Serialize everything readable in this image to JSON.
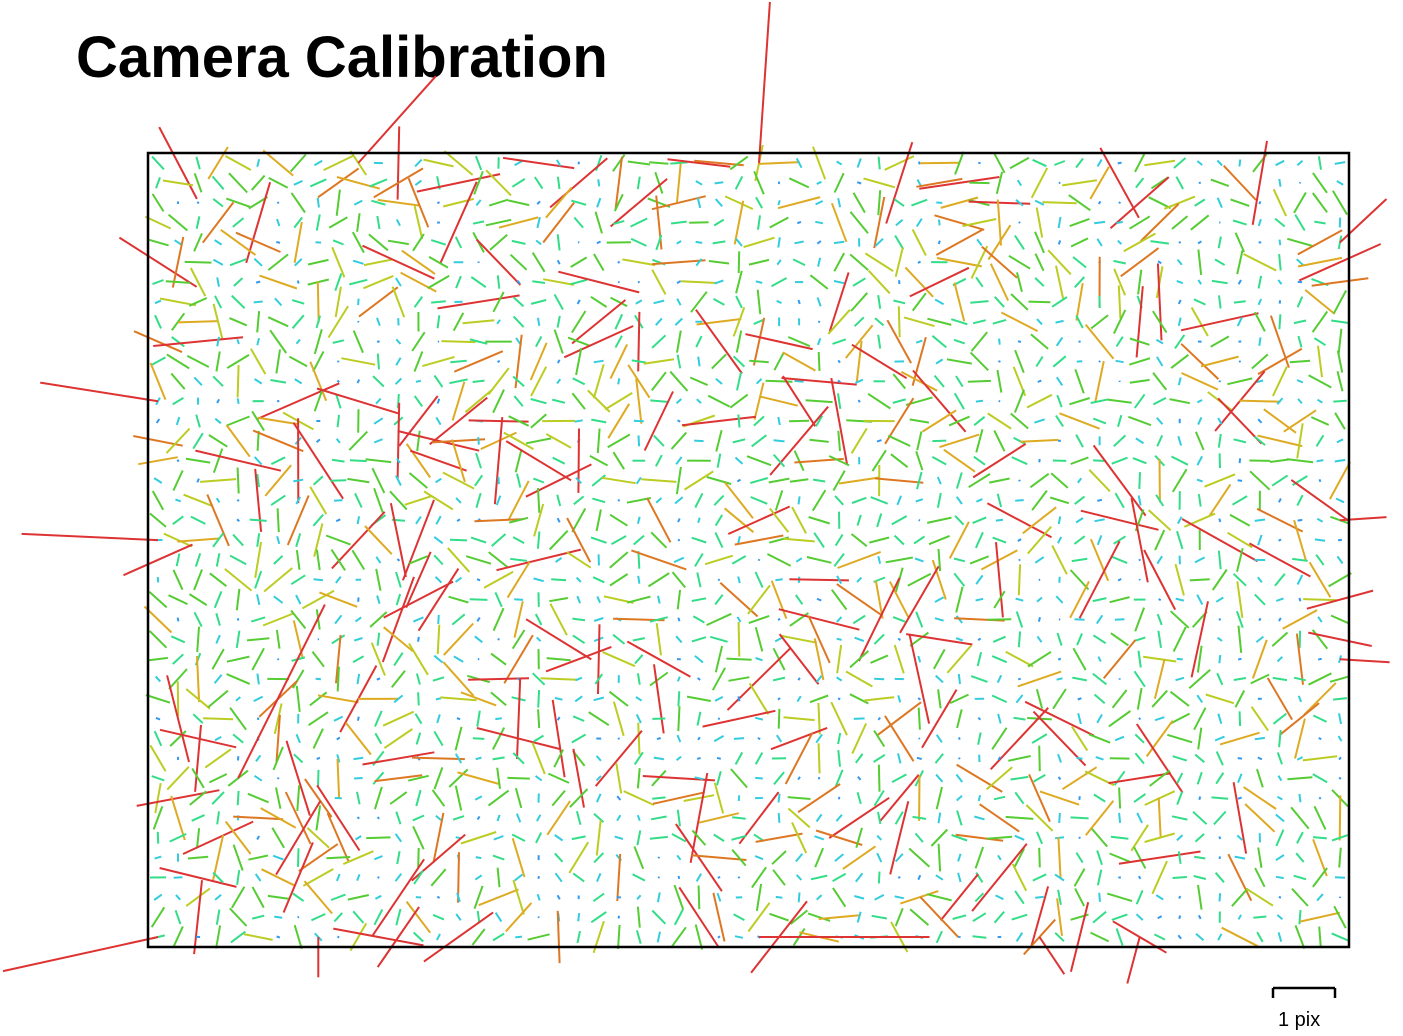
{
  "title": "Camera Calibration",
  "chart_data": {
    "type": "quiver",
    "description_fields": "Residual vector field over image grid; color encodes residual magnitude",
    "grid": {
      "columns": 60,
      "rows": 40
    },
    "scale_bar": {
      "value": 1,
      "unit": "pix",
      "label": "1 pix"
    },
    "color_scale": [
      {
        "max": 0.08,
        "color": "#3399ee"
      },
      {
        "max": 0.18,
        "color": "#33ccdd"
      },
      {
        "max": 0.3,
        "color": "#33dd88"
      },
      {
        "max": 0.45,
        "color": "#55cc33"
      },
      {
        "max": 0.6,
        "color": "#bbcc22"
      },
      {
        "max": 0.75,
        "color": "#ddaa22"
      },
      {
        "max": 0.95,
        "color": "#dd7722"
      },
      {
        "max": 99,
        "color": "#dd3333"
      }
    ],
    "outliers": [
      {
        "col": 30,
        "row": 0,
        "dx": 0.35,
        "dy": -5.5
      },
      {
        "col": 10,
        "row": 0,
        "dx": 2.5,
        "dy": -2.8
      },
      {
        "col": 0,
        "row": 12,
        "dx": -3.8,
        "dy": -0.6
      },
      {
        "col": 0,
        "row": 19,
        "dx": -4.4,
        "dy": -0.2
      },
      {
        "col": 0,
        "row": 39,
        "dx": -5.0,
        "dy": 1.1
      },
      {
        "col": 59,
        "row": 18,
        "dx": 1.5,
        "dy": -0.1
      },
      {
        "col": 59,
        "row": 25,
        "dx": 1.6,
        "dy": 0.1
      },
      {
        "col": 59,
        "row": 4,
        "dx": 1.5,
        "dy": -1.4
      },
      {
        "col": 8,
        "row": 39,
        "dx": 0.0,
        "dy": 1.3
      },
      {
        "col": 44,
        "row": 39,
        "dx": 0.8,
        "dy": 1.2
      },
      {
        "col": 49,
        "row": 39,
        "dx": -0.4,
        "dy": 1.5
      },
      {
        "col": 30,
        "row": 39,
        "dx": 5.5,
        "dy": 0.0
      },
      {
        "col": 4,
        "row": 31,
        "dx": 2.8,
        "dy": -5.6
      }
    ],
    "xlabel": "",
    "ylabel": ""
  }
}
